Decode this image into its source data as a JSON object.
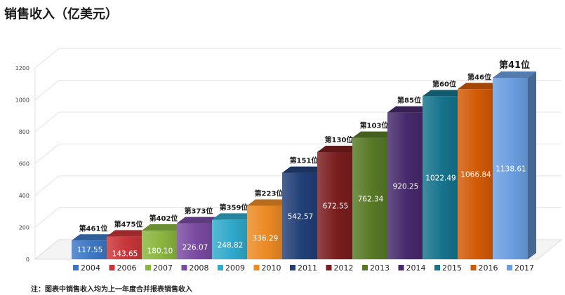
{
  "chart_data": {
    "type": "bar",
    "title": "销售收入（亿美元）",
    "categories": [
      "2004",
      "2006",
      "2007",
      "2008",
      "2009",
      "2010",
      "2011",
      "2012",
      "2013",
      "2014",
      "2015",
      "2016",
      "2017"
    ],
    "values": [
      117.55,
      143.65,
      180.1,
      226.07,
      248.82,
      336.29,
      542.57,
      672.55,
      762.34,
      920.25,
      1022.49,
      1066.84,
      1138.61
    ],
    "value_labels": [
      "117.55",
      "143.65",
      "180.10",
      "226.07",
      "248.82",
      "336.29",
      "542.57",
      "672.55",
      "762.34",
      "920.25",
      "1022.49",
      "1066.84",
      "1138.61"
    ],
    "rank_labels": [
      "第461位",
      "第475位",
      "第402位",
      "第373位",
      "第359位",
      "第223位",
      "第151位",
      "第130位",
      "第103位",
      "第85位",
      "第60位",
      "第46位",
      "第41位"
    ],
    "ylim": [
      0,
      1200
    ],
    "yticks": [
      0,
      200,
      400,
      600,
      800,
      1000,
      1200
    ],
    "xlabel": "",
    "ylabel": "",
    "grid": true,
    "legend_position": "bottom",
    "colors": [
      "#3d78c6",
      "#c8363a",
      "#8ab640",
      "#7a4aa1",
      "#31aacb",
      "#ec8a24",
      "#223f78",
      "#7b1d1f",
      "#587a26",
      "#46296c",
      "#16748d",
      "#d25a06",
      "#6b9ee0"
    ],
    "note": "注：图表中销售收入均为上一年度合并报表销售收入"
  }
}
